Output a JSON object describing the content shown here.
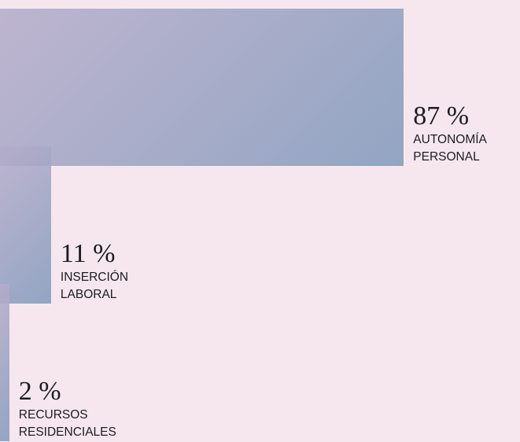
{
  "chart_data": {
    "type": "bar",
    "categories": [
      "AUTONOMÍA PERSONAL",
      "INSERCIÓN LABORAL",
      "RECURSOS RESIDENCIALES"
    ],
    "values": [
      87,
      11,
      2
    ],
    "value_labels": [
      "87 %",
      "11 %",
      "2 %"
    ]
  }
}
